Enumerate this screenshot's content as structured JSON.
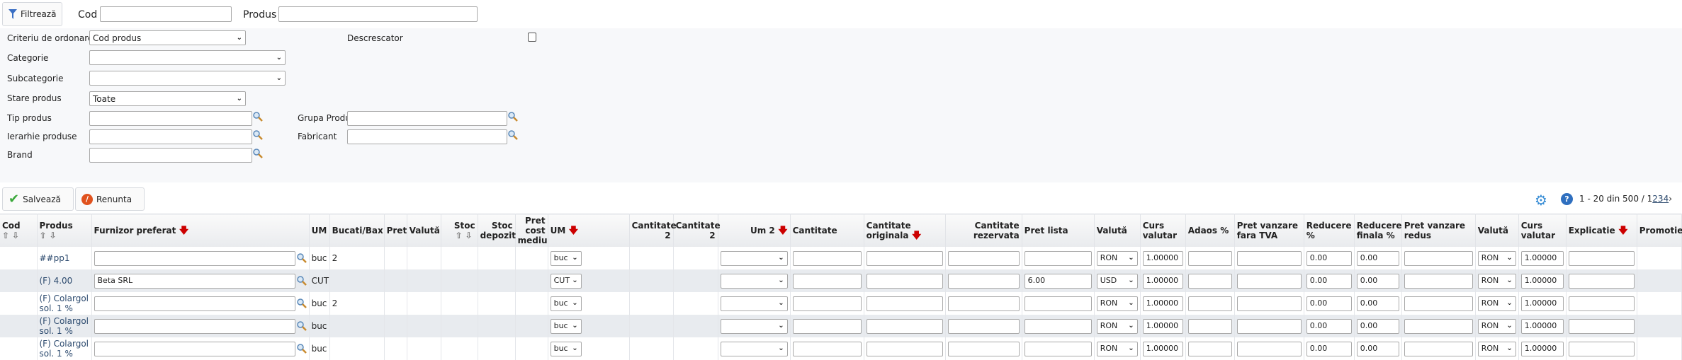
{
  "filter": {
    "button": "Filtrează",
    "cod_label": "Cod",
    "cod_value": "",
    "produs_label": "Produs",
    "produs_value": "",
    "criteriu_label": "Criteriu de ordonare",
    "criteriu_value": "Cod produs",
    "descrescator_label": "Descrescator",
    "descrescator_checked": false,
    "categorie_label": "Categorie",
    "categorie_value": "",
    "subcategorie_label": "Subcategorie",
    "subcategorie_value": "",
    "stare_label": "Stare produs",
    "stare_value": "Toate",
    "tip_label": "Tip produs",
    "grupa_label": "Grupa Produs",
    "ierarhie_label": "Ierarhie produse",
    "fabricant_label": "Fabricant",
    "brand_label": "Brand"
  },
  "toolbar": {
    "save": "Salvează",
    "cancel": "Renunta",
    "pager_text": "1 - 20 din 500 /",
    "pages": [
      "1",
      "2",
      "3",
      "4"
    ],
    "next": "›"
  },
  "columns": [
    "Cod",
    "Produs",
    "Furnizor preferat",
    "UM",
    "Bucati/Bax",
    "Pret",
    "Valută",
    "Stoc",
    "Stoc depozit",
    "Pret cost mediu",
    "UM",
    "Cantitate 2",
    "Cantitate 2",
    "Um 2",
    "Cantitate",
    "Cantitate originala",
    "Cantitate rezervata",
    "Pret lista",
    "Valută",
    "Curs valutar",
    "Adaos %",
    "Pret vanzare fara TVA",
    "Reducere %",
    "Reducere finala %",
    "Pret vanzare redus",
    "Valută",
    "Curs valutar",
    "Explicatie",
    "Promotie"
  ],
  "rows": [
    {
      "produs": "##pp1",
      "furnizor": "",
      "um": "buc",
      "bucati": "2",
      "um_sel": "buc",
      "pret_lista": "",
      "valuta": "RON",
      "curs": "1.00000",
      "reducere": "0.00",
      "reducere_finala": "0.00",
      "valuta2": "RON",
      "curs2": "1.00000"
    },
    {
      "produs": "(F) 4.00",
      "furnizor": "Beta SRL",
      "um": "CUT",
      "bucati": "",
      "um_sel": "CUT",
      "pret_lista": "6.00",
      "valuta": "USD",
      "curs": "1.00000",
      "reducere": "0.00",
      "reducere_finala": "0.00",
      "valuta2": "RON",
      "curs2": "1.00000"
    },
    {
      "produs": "(F) Colargol sol. 1 %",
      "furnizor": "",
      "um": "buc",
      "bucati": "2",
      "um_sel": "buc",
      "pret_lista": "",
      "valuta": "RON",
      "curs": "1.00000",
      "reducere": "0.00",
      "reducere_finala": "0.00",
      "valuta2": "RON",
      "curs2": "1.00000"
    },
    {
      "produs": "(F) Colargol sol. 1 %",
      "furnizor": "",
      "um": "buc",
      "bucati": "",
      "um_sel": "buc",
      "pret_lista": "",
      "valuta": "RON",
      "curs": "1.00000",
      "reducere": "0.00",
      "reducere_finala": "0.00",
      "valuta2": "RON",
      "curs2": "1.00000"
    },
    {
      "produs": "(F) Colargol sol. 1 %",
      "furnizor": "",
      "um": "buc",
      "bucati": "",
      "um_sel": "buc",
      "pret_lista": "",
      "valuta": "RON",
      "curs": "1.00000",
      "reducere": "0.00",
      "reducere_finala": "0.00",
      "valuta2": "RON",
      "curs2": "1.00000"
    }
  ],
  "colors": {
    "accent": "#2c4a6e",
    "sort_arrow": "#cc0000",
    "panel_bg": "#f7f8fa",
    "alt_row": "#e8ebef"
  }
}
